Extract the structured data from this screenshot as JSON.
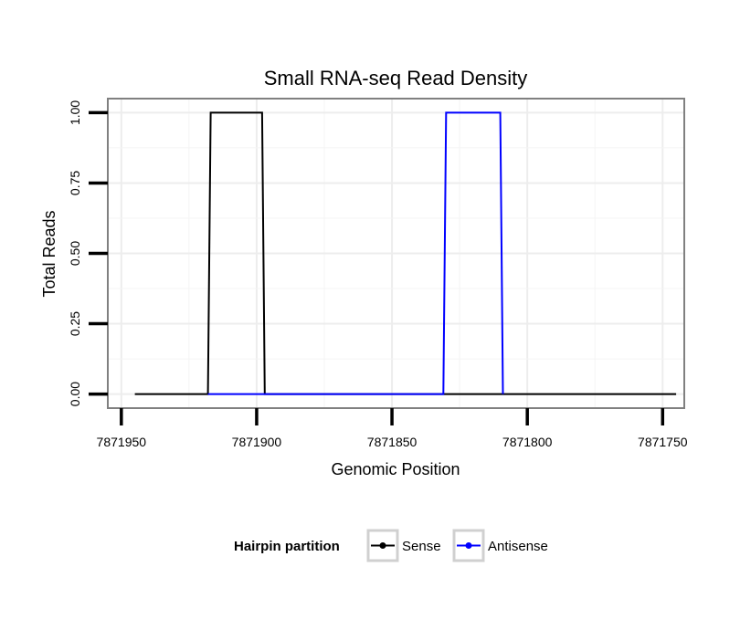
{
  "chart_data": {
    "type": "line",
    "title": "Small RNA-seq Read Density",
    "xlabel": "Genomic Position",
    "ylabel": "Total Reads",
    "x_reversed": true,
    "xlim": [
      7871955,
      7871742
    ],
    "ylim": [
      -0.05,
      1.05
    ],
    "x_ticks": [
      7871950,
      7871900,
      7871850,
      7871800,
      7871750
    ],
    "x_tick_labels": [
      "7871950",
      "7871900",
      "7871850",
      "7871800",
      "7871750"
    ],
    "y_ticks": [
      0,
      0.25,
      0.5,
      0.75,
      1.0
    ],
    "y_tick_labels": [
      "0.00",
      "0.25",
      "0.50",
      "0.75",
      "1.00"
    ],
    "grid": true,
    "legend": {
      "title": "Hairpin partition",
      "position": "bottom"
    },
    "series": [
      {
        "name": "Sense",
        "color": "#000000",
        "points": [
          [
            7871945,
            0
          ],
          [
            7871918,
            0
          ],
          [
            7871917,
            1
          ],
          [
            7871898,
            1
          ],
          [
            7871897,
            0
          ],
          [
            7871850,
            0
          ],
          [
            7871830,
            0
          ],
          [
            7871750,
            0
          ],
          [
            7871745,
            0
          ]
        ]
      },
      {
        "name": "Antisense",
        "color": "#0000ff",
        "points": [
          [
            7871918,
            0
          ],
          [
            7871897,
            0
          ],
          [
            7871831,
            0
          ],
          [
            7871830,
            1
          ],
          [
            7871810,
            1
          ],
          [
            7871809,
            0
          ]
        ]
      }
    ]
  }
}
